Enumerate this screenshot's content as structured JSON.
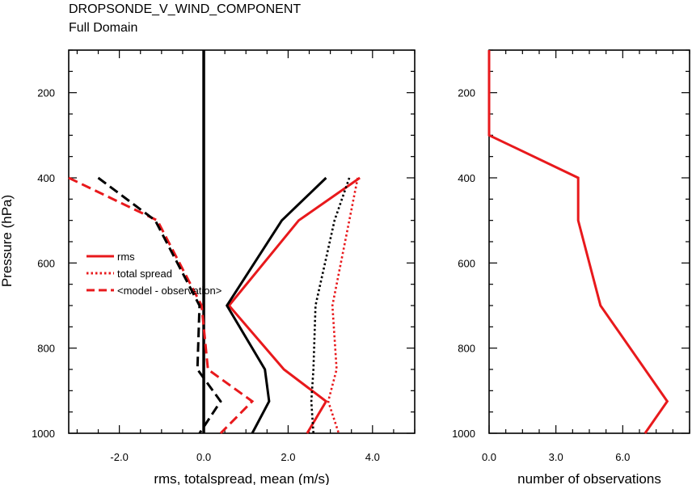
{
  "title": "DROPSONDE_V_WIND_COMPONENT",
  "subtitle": "Full Domain",
  "ylabel": "Pressure (hPa)",
  "colors": {
    "red": "#e8191c",
    "black": "#000000"
  },
  "chart_data": [
    {
      "type": "line",
      "xlabel": "rms, totalspread, mean (m/s)",
      "xlim": [
        -3.2,
        5.0
      ],
      "ylim": [
        1000,
        100
      ],
      "y_inverted": true,
      "x_ticks": [
        -2.0,
        0.0,
        2.0,
        4.0
      ],
      "x_tick_labels": [
        "-2.0",
        "0.0",
        "2.0",
        "4.0"
      ],
      "y_ticks": [
        200,
        400,
        600,
        800,
        1000
      ],
      "y_tick_labels": [
        "200",
        "400",
        "600",
        "800",
        "1000"
      ],
      "legend_position": "center-left",
      "legend": [
        "rms",
        "total spread",
        "<model - observation>"
      ],
      "zero_line": 0.0,
      "series": [
        {
          "name": "rms",
          "color": "red",
          "dash": "solid",
          "x": [
            3.7,
            2.25,
            0.6,
            1.9,
            2.9,
            2.45
          ],
          "y": [
            400,
            500,
            700,
            850,
            925,
            1000
          ]
        },
        {
          "name": "total spread",
          "color": "red",
          "dash": "dotted",
          "x": [
            3.65,
            3.45,
            3.05,
            3.15,
            2.95,
            3.2
          ],
          "y": [
            400,
            500,
            700,
            850,
            925,
            1000
          ]
        },
        {
          "name": "<model - observation>",
          "color": "red",
          "dash": "dashed",
          "x": [
            -3.2,
            -1.1,
            -0.05,
            0.1,
            1.15,
            0.4
          ],
          "y": [
            400,
            500,
            700,
            850,
            925,
            1000
          ]
        },
        {
          "color": "black",
          "dash": "solid",
          "x": [
            2.9,
            1.85,
            0.55,
            1.45,
            1.55,
            1.15
          ],
          "y": [
            400,
            500,
            700,
            850,
            925,
            1000
          ]
        },
        {
          "color": "black",
          "dash": "dotted",
          "x": [
            3.45,
            3.1,
            2.65,
            2.6,
            2.55,
            2.6
          ],
          "y": [
            400,
            500,
            700,
            850,
            925,
            1000
          ]
        },
        {
          "color": "black",
          "dash": "dashed",
          "x": [
            -2.5,
            -1.15,
            -0.1,
            -0.15,
            0.4,
            -0.1
          ],
          "y": [
            400,
            500,
            700,
            850,
            925,
            1000
          ]
        }
      ]
    },
    {
      "type": "line",
      "xlabel": "number of observations",
      "xlim": [
        0,
        9
      ],
      "ylim": [
        1000,
        100
      ],
      "y_inverted": true,
      "x_ticks": [
        0,
        3,
        6
      ],
      "x_tick_labels": [
        "0.0",
        "3.0",
        "6.0"
      ],
      "y_ticks": [
        200,
        400,
        600,
        800,
        1000
      ],
      "y_tick_labels": [
        "200",
        "400",
        "600",
        "800",
        "1000"
      ],
      "series": [
        {
          "color": "red",
          "dash": "solid",
          "x": [
            0,
            0,
            4,
            4,
            5,
            8,
            7
          ],
          "y": [
            100,
            300,
            400,
            500,
            700,
            925,
            1000
          ]
        }
      ]
    }
  ]
}
